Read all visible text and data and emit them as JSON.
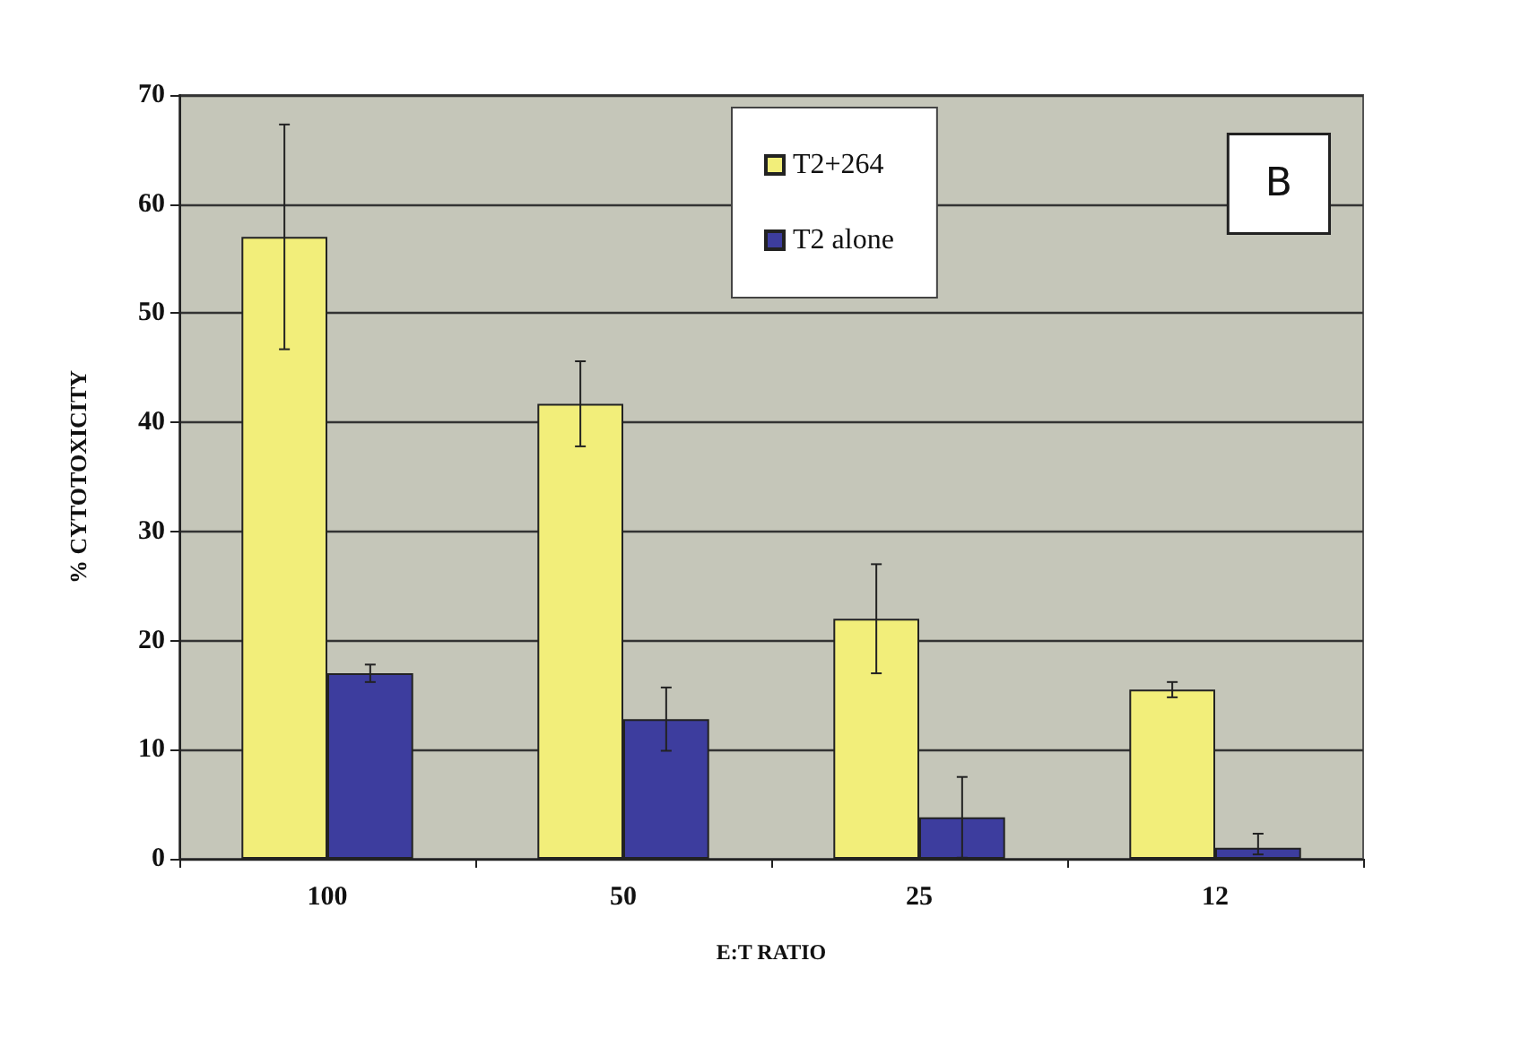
{
  "chart_data": {
    "type": "bar",
    "xlabel": "E:T RATIO",
    "ylabel": "% CYTOTOXICITY",
    "categories": [
      "100",
      "50",
      "25",
      "12"
    ],
    "series": [
      {
        "name": "T2+264",
        "color": "#f2ee7a",
        "values": [
          57,
          41.7,
          22,
          15.5
        ],
        "errors": [
          10.3,
          3.9,
          5,
          0.7
        ]
      },
      {
        "name": "T2 alone",
        "color": "#3d3d9e",
        "values": [
          17,
          12.8,
          3.8,
          1
        ],
        "errors": [
          0.8,
          2.9,
          3.7,
          [
            0.4,
            2.3
          ]
        ]
      }
    ],
    "ylim": [
      0,
      70
    ],
    "yticks": [
      0,
      10,
      20,
      30,
      40,
      50,
      60,
      70
    ],
    "grid": "y",
    "legend": "top",
    "annotations": [
      "B"
    ]
  }
}
